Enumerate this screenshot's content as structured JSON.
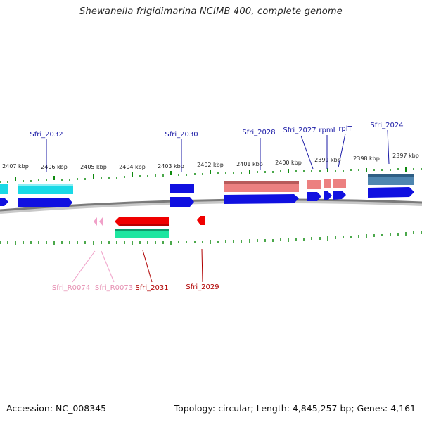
{
  "title": "Shewanella frigidimarina NCIMB 400, complete genome",
  "footer": {
    "accession": "Accession: NC_008345",
    "summary": "Topology: circular; Length: 4,845,257 bp; Genes: 4,161"
  },
  "ruler_labels": [
    "2407 kbp",
    "2406 kbp",
    "2405 kbp",
    "2404 kbp",
    "2403 kbp",
    "2402 kbp",
    "2401 kbp",
    "2400 kbp",
    "2399 kbp",
    "2398 kbp",
    "2397 kbp"
  ],
  "top_gene_labels": [
    "Sfri_2032",
    "Sfri_2030",
    "Sfri_2028",
    "Sfri_2027",
    "rpmI",
    "rplT",
    "Sfri_2024"
  ],
  "bottom_gene_labels": [
    "Sfri_R0074",
    "Sfri_R0073",
    "Sfri_2031",
    "Sfri_2029"
  ],
  "colors": {
    "top_label": "#1a1aa6",
    "bottom_label_red": "#b00000",
    "bottom_label_pink": "#e58cb0",
    "tick": "#0f8a0f",
    "backbone": "#808080",
    "cds_blue": "#1010e0",
    "cyan": "#19d9e6",
    "salmon": "#ec8080",
    "steel": "#4f86b0",
    "red": "#f00000",
    "teal": "#1ee6a0",
    "pink": "#f0a0c8"
  }
}
